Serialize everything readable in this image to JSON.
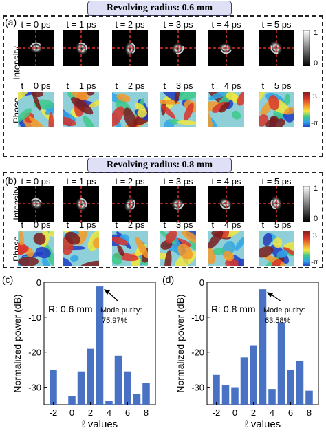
{
  "panels": [
    {
      "id": "a",
      "label": "(a)",
      "title": "Revolving radius: 0.6 mm",
      "intensity_label": "Intensity",
      "phase_label": "Phase",
      "times": [
        "t = 0 ps",
        "t = 1 ps",
        "t = 2 ps",
        "t = 3 ps",
        "t = 4 ps",
        "t = 5 ps"
      ],
      "intensity_colorbar": {
        "max": "1",
        "min": "0"
      },
      "phase_colorbar": {
        "max": "π",
        "min": "-π"
      }
    },
    {
      "id": "b",
      "label": "(b)",
      "title": "Revolving radius: 0.8 mm",
      "intensity_label": "Intensity",
      "phase_label": "Phase",
      "times": [
        "t = 0 ps",
        "t = 1 ps",
        "t = 2 ps",
        "t = 3 ps",
        "t = 4 ps",
        "t = 5 ps"
      ],
      "intensity_colorbar": {
        "max": "1",
        "min": "0"
      },
      "phase_colorbar": {
        "max": "π",
        "min": "-π"
      }
    }
  ],
  "chart_data": [
    {
      "type": "bar",
      "panel_label": "(c)",
      "annotation_r": "R: 0.6 mm",
      "annotation_purity_label": "Mode purity:",
      "annotation_purity_value": "75.97%",
      "xlabel": "ℓ values",
      "ylabel": "Normalized power (dB)",
      "xticks": [
        "-2",
        "0",
        "2",
        "4",
        "6",
        "8"
      ],
      "yticks": [
        "0",
        "-10",
        "-20",
        "-30"
      ],
      "ylim": [
        -35,
        0
      ],
      "x": [
        -2,
        -1,
        0,
        1,
        2,
        3,
        4,
        5,
        6,
        7,
        8
      ],
      "values": [
        -25,
        -35,
        -32.5,
        -25.5,
        -19,
        -1.2,
        -34,
        -21,
        -25.5,
        -32,
        -28.8
      ],
      "color": "#4a72c4"
    },
    {
      "type": "bar",
      "panel_label": "(d)",
      "annotation_r": "R: 0.8 mm",
      "annotation_purity_label": "Mode purity:",
      "annotation_purity_value": "63.58%",
      "xlabel": "ℓ values",
      "ylabel": "Normalized power (dB)",
      "xticks": [
        "-2",
        "0",
        "2",
        "4",
        "6",
        "8"
      ],
      "yticks": [
        "0",
        "-10",
        "-20",
        "-30"
      ],
      "ylim": [
        -35,
        0
      ],
      "x": [
        -2,
        -1,
        0,
        1,
        2,
        3,
        4,
        5,
        6,
        7,
        8
      ],
      "values": [
        -26.5,
        -29.5,
        -30,
        -21.5,
        -18,
        -2,
        -30.5,
        -11.5,
        -25,
        -22.5,
        -31
      ],
      "color": "#4a72c4"
    }
  ]
}
